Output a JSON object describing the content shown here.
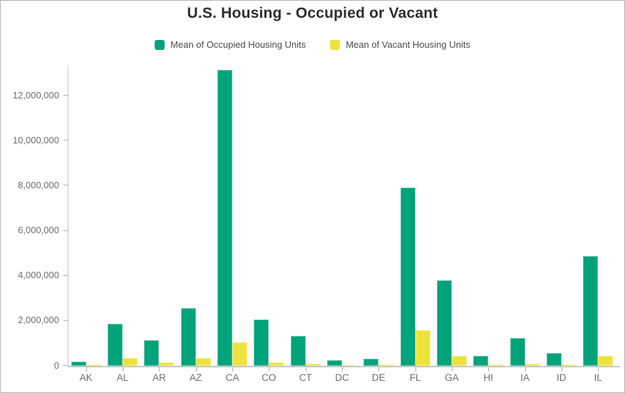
{
  "chart": {
    "title": "U.S. Housing - Occupied or Vacant"
  },
  "chart_data": {
    "type": "bar",
    "title": "U.S. Housing - Occupied or Vacant",
    "categories": [
      "AK",
      "AL",
      "AR",
      "AZ",
      "CA",
      "CO",
      "CT",
      "DC",
      "DE",
      "FL",
      "GA",
      "HI",
      "IA",
      "ID",
      "IL"
    ],
    "series": [
      {
        "name": "Mean of Occupied Housing Units",
        "color": "#00a37a",
        "values": [
          200000,
          1860000,
          1140000,
          2560000,
          13150000,
          2060000,
          1330000,
          250000,
          330000,
          7930000,
          3790000,
          430000,
          1230000,
          580000,
          4870000
        ]
      },
      {
        "name": "Mean of Vacant Housing Units",
        "color": "#eee33b",
        "values": [
          50000,
          350000,
          160000,
          350000,
          1050000,
          160000,
          90000,
          30000,
          60000,
          1580000,
          440000,
          60000,
          100000,
          60000,
          430000
        ]
      }
    ],
    "xlabel": "",
    "ylabel": "",
    "ylim": [
      0,
      13400000
    ],
    "y_ticks": [
      0,
      2000000,
      4000000,
      6000000,
      8000000,
      10000000,
      12000000
    ],
    "y_tick_labels": [
      "0",
      "2,000,000",
      "4,000,000",
      "6,000,000",
      "8,000,000",
      "10,000,000",
      "12,000,000"
    ],
    "grid": false,
    "legend_position": "top"
  }
}
